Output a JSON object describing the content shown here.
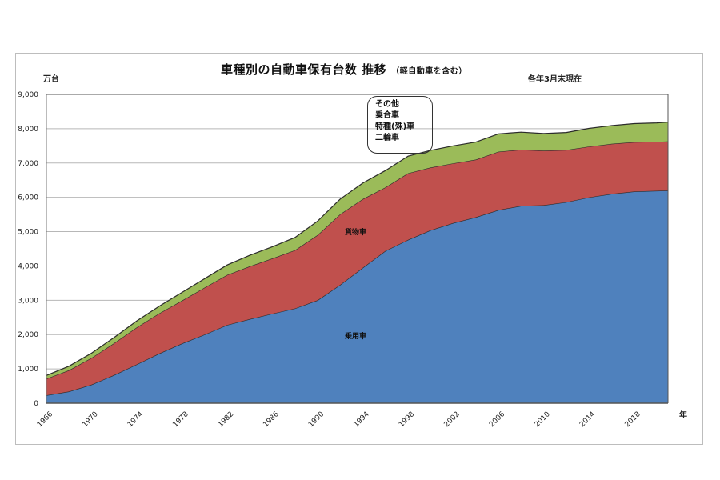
{
  "chart": {
    "title": "車種別の自動車保有台数 推移",
    "title_main": "車種別の自動車保有台数",
    "title_suffix": "推移",
    "subtitle": "（軽自動車を含む）",
    "unit_label": "万台",
    "as_of_label": "各年3月末現在",
    "x_axis_unit": "年",
    "callout_lines": [
      "その他",
      "乗合車",
      "特種(殊)車",
      "二輪車"
    ],
    "series_labels": {
      "passenger": "乗用車",
      "freight": "貨物車"
    }
  },
  "colors": {
    "passenger": "#4f81bd",
    "freight": "#c0504d",
    "other": "#9bbb59",
    "outline": "#2b2b2b",
    "grid": "#b7b7b7"
  },
  "chart_data": {
    "type": "area",
    "stacked": true,
    "title": "車種別の自動車保有台数 推移（軽自動車を含む）",
    "subtitle": "各年3月末現在",
    "xlabel": "年",
    "ylabel": "万台",
    "ylim": [
      0,
      9000
    ],
    "yticks": [
      "0",
      "1,000",
      "2,000",
      "3,000",
      "4,000",
      "5,000",
      "6,000",
      "7,000",
      "8,000",
      "9,000"
    ],
    "xticks": [
      "1966",
      "1970",
      "1974",
      "1978",
      "1982",
      "1986",
      "1990",
      "1994",
      "1998",
      "2002",
      "2006",
      "2010",
      "2014",
      "2018"
    ],
    "grid": true,
    "legend_position": "in-plot labels",
    "x": [
      1966,
      1968,
      1970,
      1972,
      1974,
      1976,
      1978,
      1980,
      1982,
      1984,
      1986,
      1988,
      1990,
      1992,
      1994,
      1996,
      1998,
      2000,
      2002,
      2004,
      2006,
      2008,
      2010,
      2012,
      2014,
      2016,
      2018,
      2020,
      2021
    ],
    "series": [
      {
        "name": "乗用車",
        "values": [
          230,
          340,
          540,
          820,
          1130,
          1450,
          1740,
          2000,
          2280,
          2450,
          2610,
          2760,
          3000,
          3450,
          3950,
          4440,
          4760,
          5040,
          5250,
          5420,
          5630,
          5750,
          5770,
          5860,
          6000,
          6100,
          6170,
          6190,
          6200
        ]
      },
      {
        "name": "貨物車",
        "values": [
          480,
          620,
          780,
          930,
          1080,
          1170,
          1250,
          1370,
          1460,
          1540,
          1610,
          1700,
          1900,
          2060,
          2000,
          1850,
          1940,
          1830,
          1740,
          1680,
          1700,
          1640,
          1590,
          1520,
          1480,
          1460,
          1440,
          1430,
          1430
        ]
      },
      {
        "name": "その他（乗合車・特種(殊)車・二輪車）",
        "values": [
          100,
          120,
          140,
          170,
          190,
          210,
          240,
          260,
          290,
          320,
          340,
          370,
          410,
          440,
          470,
          490,
          500,
          500,
          510,
          510,
          520,
          510,
          500,
          510,
          530,
          530,
          540,
          550,
          560
        ]
      }
    ]
  }
}
